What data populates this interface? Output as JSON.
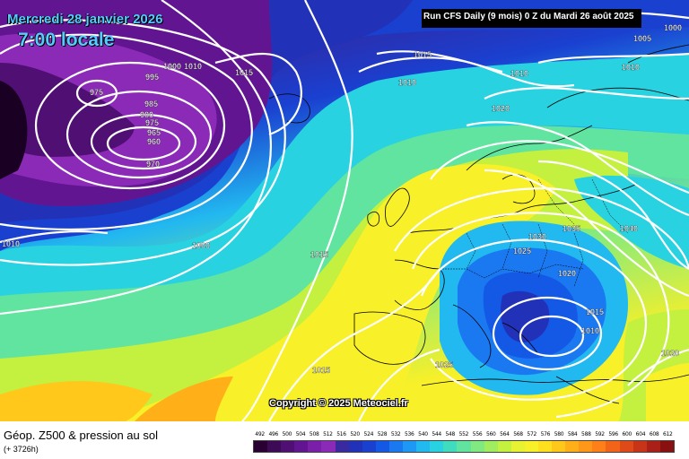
{
  "header": {
    "date": "Mercredi 28 janvier 2026",
    "time": "7:00 locale",
    "run": "Run CFS Daily (9 mois) 0 Z du Mardi 26 août 2025"
  },
  "copyright": "Copyright © 2025 Meteociel.fr",
  "footer": {
    "title": "Géop. Z500 & pression au sol",
    "subtitle": "(+ 3726h)"
  },
  "isobar_labels": [
    {
      "id": "p975a",
      "text": "975"
    },
    {
      "id": "p995",
      "text": "995"
    },
    {
      "id": "p1000a",
      "text": "1000"
    },
    {
      "id": "p1010a",
      "text": "1010"
    },
    {
      "id": "p1015a",
      "text": "1015"
    },
    {
      "id": "p1015b",
      "text": "1015"
    },
    {
      "id": "p1005",
      "text": "1005"
    },
    {
      "id": "p1000b",
      "text": "1000"
    },
    {
      "id": "p1010b",
      "text": "1010"
    },
    {
      "id": "p1010c",
      "text": "1010"
    },
    {
      "id": "p1010d",
      "text": "1010"
    },
    {
      "id": "p1020a",
      "text": "1020"
    },
    {
      "id": "p985",
      "text": "985"
    },
    {
      "id": "p980",
      "text": "980"
    },
    {
      "id": "p975b",
      "text": "975"
    },
    {
      "id": "p965",
      "text": "965"
    },
    {
      "id": "p960",
      "text": "960"
    },
    {
      "id": "p970",
      "text": "970"
    },
    {
      "id": "p1010e",
      "text": "1010"
    },
    {
      "id": "p1000c",
      "text": "1000"
    },
    {
      "id": "p1015c",
      "text": "1015"
    },
    {
      "id": "p1030",
      "text": "1030"
    },
    {
      "id": "p1035",
      "text": "1035"
    },
    {
      "id": "p1040",
      "text": "1040"
    },
    {
      "id": "p1025a",
      "text": "1025"
    },
    {
      "id": "p1020b",
      "text": "1020"
    },
    {
      "id": "p1015d",
      "text": "1015"
    },
    {
      "id": "p1010f",
      "text": "1010"
    },
    {
      "id": "p1015e",
      "text": "1015"
    },
    {
      "id": "p1025b",
      "text": "1025"
    },
    {
      "id": "p1020c",
      "text": "1020"
    }
  ],
  "scale": {
    "ticks": [
      "492",
      "496",
      "500",
      "504",
      "508",
      "512",
      "516",
      "520",
      "524",
      "528",
      "532",
      "536",
      "540",
      "544",
      "548",
      "552",
      "556",
      "560",
      "564",
      "568",
      "572",
      "576",
      "580",
      "584",
      "588",
      "592",
      "596",
      "600",
      "604",
      "608",
      "612"
    ],
    "colors": [
      "#2a0033",
      "#3d0a55",
      "#500f73",
      "#621591",
      "#7a1fa8",
      "#8c2ab8",
      "#3a2aa0",
      "#2232b8",
      "#1a40d0",
      "#1458e6",
      "#1a78f0",
      "#1e98f5",
      "#22b8f0",
      "#28d2e0",
      "#40dcc0",
      "#60e4a0",
      "#80ea80",
      "#a0ee60",
      "#c4f040",
      "#e6f232",
      "#f8f028",
      "#ffe01e",
      "#ffc81a",
      "#ffb018",
      "#ff9818",
      "#ff7f18",
      "#f26418",
      "#e04a18",
      "#c83418",
      "#a82018",
      "#881010"
    ]
  }
}
